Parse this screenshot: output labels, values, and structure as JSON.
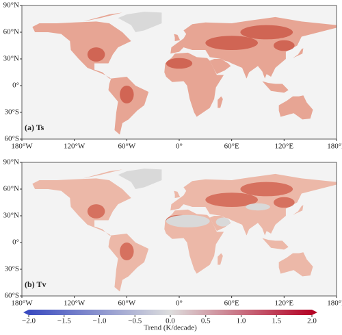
{
  "panels": [
    {
      "label": "(a) Ts",
      "land": "#e7a594",
      "hot": "#c9503f"
    },
    {
      "label": "(b) Tv",
      "land": "#ecb8a8",
      "hot": "#cf5a47"
    }
  ],
  "axes": {
    "xlim": [
      -180,
      180
    ],
    "ylim": [
      -60,
      90
    ],
    "xticks": [
      {
        "value": -180,
        "label": "180°W"
      },
      {
        "value": -120,
        "label": "120°W"
      },
      {
        "value": -60,
        "label": "60°W"
      },
      {
        "value": 0,
        "label": "0°"
      },
      {
        "value": 60,
        "label": "60°E"
      },
      {
        "value": 120,
        "label": "120°E"
      },
      {
        "value": 180,
        "label": "180°E"
      }
    ],
    "yticks": [
      {
        "value": 90,
        "label": "90°N"
      },
      {
        "value": 60,
        "label": "60°N"
      },
      {
        "value": 30,
        "label": "30°N"
      },
      {
        "value": 0,
        "label": "0°"
      },
      {
        "value": -30,
        "label": "30°S"
      },
      {
        "value": -60,
        "label": "60°S"
      }
    ]
  },
  "colorbar": {
    "label": "Trend (K/decade)",
    "lim": [
      -2,
      2
    ],
    "ticks": [
      {
        "value": -2,
        "label": "−2.0"
      },
      {
        "value": -1.5,
        "label": "−1.5"
      },
      {
        "value": -1,
        "label": "−1.0"
      },
      {
        "value": -0.5,
        "label": "−0.5"
      },
      {
        "value": 0,
        "label": "0.0"
      },
      0.5,
      {
        "value": 1,
        "label": "1.0"
      },
      1.5,
      {
        "value": 2,
        "label": "2.0"
      }
    ],
    "colors": [
      "#3b4cc0",
      "#dddddd",
      "#b40426"
    ]
  }
}
